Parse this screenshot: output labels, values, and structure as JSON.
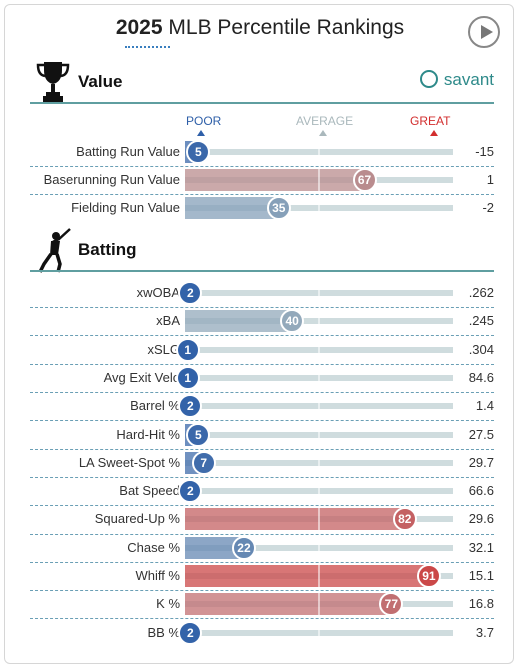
{
  "header": {
    "year": "2025",
    "title": "MLB Percentile Rankings",
    "play_icon": "play-icon"
  },
  "scale": {
    "poor": "POOR",
    "average": "AVERAGE",
    "great": "GREAT"
  },
  "brand": {
    "name": "savant",
    "icon": "baseball-icon"
  },
  "colors": {
    "accent": "#5f9ea0",
    "poor": "#2e5fa8",
    "average": "#aab8bc",
    "great": "#d22e2e"
  },
  "chart_data": {
    "type": "bar",
    "orientation": "horizontal",
    "xlim": [
      0,
      100
    ],
    "sections": [
      {
        "name": "Value",
        "icon": "trophy-icon",
        "metrics": [
          {
            "label": "Batting Run Value",
            "percentile": 5,
            "value": "-15"
          },
          {
            "label": "Baserunning Run Value",
            "percentile": 67,
            "value": "1"
          },
          {
            "label": "Fielding Run Value",
            "percentile": 35,
            "value": "-2"
          }
        ]
      },
      {
        "name": "Batting",
        "icon": "batter-icon",
        "metrics": [
          {
            "label": "xwOBA",
            "percentile": 2,
            "value": ".262"
          },
          {
            "label": "xBA",
            "percentile": 40,
            "value": ".245"
          },
          {
            "label": "xSLG",
            "percentile": 1,
            "value": ".304"
          },
          {
            "label": "Avg Exit Velo",
            "percentile": 1,
            "value": "84.6"
          },
          {
            "label": "Barrel %",
            "percentile": 2,
            "value": "1.4"
          },
          {
            "label": "Hard-Hit %",
            "percentile": 5,
            "value": "27.5"
          },
          {
            "label": "LA Sweet-Spot %",
            "percentile": 7,
            "value": "29.7"
          },
          {
            "label": "Bat Speed",
            "percentile": 2,
            "value": "66.6"
          },
          {
            "label": "Squared-Up %",
            "percentile": 82,
            "value": "29.6"
          },
          {
            "label": "Chase %",
            "percentile": 22,
            "value": "32.1"
          },
          {
            "label": "Whiff %",
            "percentile": 91,
            "value": "15.1"
          },
          {
            "label": "K %",
            "percentile": 77,
            "value": "16.8"
          },
          {
            "label": "BB %",
            "percentile": 2,
            "value": "3.7"
          }
        ]
      }
    ]
  }
}
